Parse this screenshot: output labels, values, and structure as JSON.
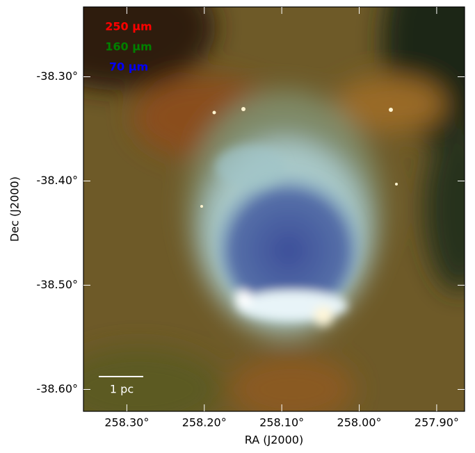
{
  "image": {
    "legend": [
      {
        "label": "250 μm",
        "color": "#ff0000"
      },
      {
        "label": "160 μm",
        "color": "#008000"
      },
      {
        "label": "70 μm",
        "color": "#0000ff"
      }
    ],
    "scale_bar": "1 pc",
    "x_axis": {
      "label": "RA (J2000)",
      "lim": [
        258.356,
        257.864
      ],
      "ticks": [
        {
          "value": 258.3,
          "label": "258.30°"
        },
        {
          "value": 258.2,
          "label": "258.20°"
        },
        {
          "value": 258.1,
          "label": "258.10°"
        },
        {
          "value": 258.0,
          "label": "258.00°"
        },
        {
          "value": 257.9,
          "label": "257.90°"
        }
      ]
    },
    "y_axis": {
      "label": "Dec (J2000)",
      "lim": [
        -38.621,
        -38.233
      ],
      "ticks": [
        {
          "value": -38.3,
          "label": "-38.30°"
        },
        {
          "value": -38.4,
          "label": "-38.40°"
        },
        {
          "value": -38.5,
          "label": "-38.50°"
        },
        {
          "value": -38.6,
          "label": "-38.60°"
        }
      ]
    }
  }
}
